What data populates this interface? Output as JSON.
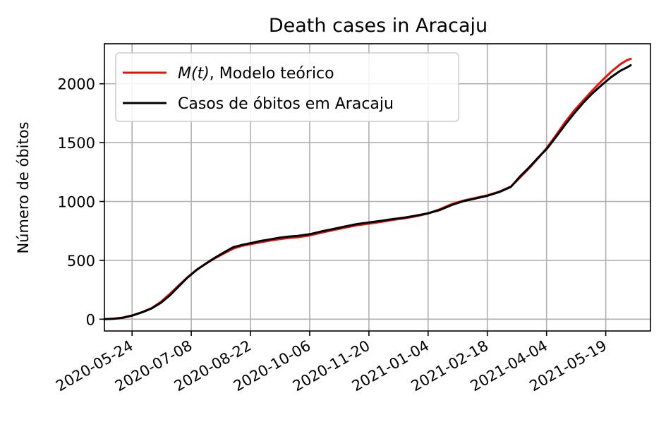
{
  "chart_data": {
    "type": "line",
    "title": "Death cases in Aracaju",
    "xlabel": "",
    "ylabel": "Número de óbitos",
    "x_type": "date",
    "xlim": [
      "2020-05-03",
      "2021-06-22"
    ],
    "ylim": [
      -100,
      2340
    ],
    "x_ticks": [
      "2020-05-24",
      "2020-07-08",
      "2020-08-22",
      "2020-10-06",
      "2020-11-20",
      "2021-01-04",
      "2021-02-18",
      "2021-04-04",
      "2021-05-19"
    ],
    "y_ticks": [
      0,
      500,
      1000,
      1500,
      2000
    ],
    "grid": true,
    "legend_position": "top-left",
    "series": [
      {
        "name": "M(t), Modelo teórico",
        "name_parts": {
          "math": "M(t)",
          "rest": ", Modelo teórico"
        },
        "color": "#e8120c",
        "points": [
          [
            "2020-05-03",
            0
          ],
          [
            "2020-05-10",
            5
          ],
          [
            "2020-05-17",
            14
          ],
          [
            "2020-05-24",
            32
          ],
          [
            "2020-06-01",
            62
          ],
          [
            "2020-06-08",
            95
          ],
          [
            "2020-06-15",
            148
          ],
          [
            "2020-06-22",
            218
          ],
          [
            "2020-06-29",
            292
          ],
          [
            "2020-07-05",
            355
          ],
          [
            "2020-07-12",
            420
          ],
          [
            "2020-07-19",
            470
          ],
          [
            "2020-07-26",
            518
          ],
          [
            "2020-08-02",
            560
          ],
          [
            "2020-08-09",
            600
          ],
          [
            "2020-08-16",
            625
          ],
          [
            "2020-08-23",
            640
          ],
          [
            "2020-08-30",
            655
          ],
          [
            "2020-09-06",
            668
          ],
          [
            "2020-09-13",
            680
          ],
          [
            "2020-09-20",
            690
          ],
          [
            "2020-09-27",
            697
          ],
          [
            "2020-10-06",
            712
          ],
          [
            "2020-10-15",
            735
          ],
          [
            "2020-10-24",
            757
          ],
          [
            "2020-11-02",
            778
          ],
          [
            "2020-11-11",
            798
          ],
          [
            "2020-11-20",
            812
          ],
          [
            "2020-11-29",
            826
          ],
          [
            "2020-12-08",
            843
          ],
          [
            "2020-12-17",
            857
          ],
          [
            "2020-12-26",
            875
          ],
          [
            "2021-01-04",
            898
          ],
          [
            "2021-01-13",
            935
          ],
          [
            "2021-01-22",
            978
          ],
          [
            "2021-01-31",
            1008
          ],
          [
            "2021-02-09",
            1030
          ],
          [
            "2021-02-18",
            1052
          ],
          [
            "2021-02-27",
            1083
          ],
          [
            "2021-03-08",
            1128
          ],
          [
            "2021-03-15",
            1205
          ],
          [
            "2021-03-22",
            1285
          ],
          [
            "2021-03-28",
            1360
          ],
          [
            "2021-04-04",
            1452
          ],
          [
            "2021-04-11",
            1560
          ],
          [
            "2021-04-18",
            1672
          ],
          [
            "2021-04-25",
            1772
          ],
          [
            "2021-05-02",
            1860
          ],
          [
            "2021-05-09",
            1945
          ],
          [
            "2021-05-16",
            2025
          ],
          [
            "2021-05-23",
            2100
          ],
          [
            "2021-05-30",
            2165
          ],
          [
            "2021-06-04",
            2200
          ],
          [
            "2021-06-07",
            2212
          ]
        ]
      },
      {
        "name": "Casos de óbitos em Aracaju",
        "color": "#000000",
        "points": [
          [
            "2020-05-03",
            0
          ],
          [
            "2020-05-10",
            4
          ],
          [
            "2020-05-17",
            12
          ],
          [
            "2020-05-24",
            30
          ],
          [
            "2020-06-01",
            60
          ],
          [
            "2020-06-08",
            92
          ],
          [
            "2020-06-15",
            140
          ],
          [
            "2020-06-22",
            205
          ],
          [
            "2020-06-29",
            285
          ],
          [
            "2020-07-05",
            352
          ],
          [
            "2020-07-12",
            418
          ],
          [
            "2020-07-19",
            472
          ],
          [
            "2020-07-26",
            522
          ],
          [
            "2020-08-02",
            568
          ],
          [
            "2020-08-09",
            612
          ],
          [
            "2020-08-16",
            632
          ],
          [
            "2020-08-23",
            648
          ],
          [
            "2020-08-30",
            665
          ],
          [
            "2020-09-06",
            678
          ],
          [
            "2020-09-13",
            692
          ],
          [
            "2020-09-20",
            702
          ],
          [
            "2020-09-27",
            708
          ],
          [
            "2020-10-06",
            722
          ],
          [
            "2020-10-15",
            746
          ],
          [
            "2020-10-24",
            766
          ],
          [
            "2020-11-02",
            788
          ],
          [
            "2020-11-11",
            808
          ],
          [
            "2020-11-20",
            822
          ],
          [
            "2020-11-29",
            835
          ],
          [
            "2020-12-08",
            850
          ],
          [
            "2020-12-17",
            863
          ],
          [
            "2020-12-26",
            880
          ],
          [
            "2021-01-04",
            900
          ],
          [
            "2021-01-13",
            928
          ],
          [
            "2021-01-22",
            970
          ],
          [
            "2021-01-31",
            1003
          ],
          [
            "2021-02-09",
            1025
          ],
          [
            "2021-02-18",
            1048
          ],
          [
            "2021-02-27",
            1080
          ],
          [
            "2021-03-08",
            1125
          ],
          [
            "2021-03-15",
            1215
          ],
          [
            "2021-03-22",
            1292
          ],
          [
            "2021-03-28",
            1365
          ],
          [
            "2021-04-04",
            1445
          ],
          [
            "2021-04-11",
            1545
          ],
          [
            "2021-04-18",
            1650
          ],
          [
            "2021-04-25",
            1748
          ],
          [
            "2021-05-02",
            1840
          ],
          [
            "2021-05-09",
            1920
          ],
          [
            "2021-05-16",
            1990
          ],
          [
            "2021-05-23",
            2055
          ],
          [
            "2021-05-30",
            2110
          ],
          [
            "2021-06-04",
            2138
          ],
          [
            "2021-06-07",
            2158
          ]
        ]
      }
    ]
  }
}
